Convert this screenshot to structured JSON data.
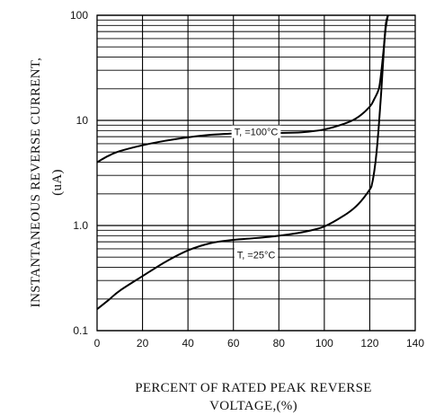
{
  "chart_data": {
    "type": "line",
    "title": "",
    "ylabel": "INSTANTANEOUS REVERSE CURRENT,",
    "ylabel_unit": "(uA)",
    "xlabel_line1": "PERCENT OF RATED PEAK REVERSE",
    "xlabel_line2": "VOLTAGE,(%)",
    "xlim": [
      0,
      140
    ],
    "ylim": [
      0.1,
      100
    ],
    "yscale": "log",
    "grid": true,
    "x_ticks": [
      0,
      20,
      40,
      60,
      80,
      100,
      120,
      140
    ],
    "x_tick_labels": [
      "0",
      "20",
      "40",
      "60",
      "80",
      "100",
      "120",
      "140"
    ],
    "y_ticks": [
      0.1,
      1.0,
      10,
      100
    ],
    "y_tick_labels": [
      "0.1",
      "1.0",
      "10",
      "100"
    ],
    "series": [
      {
        "annotation": "T, =100°C",
        "annotation_at": [
          70,
          7.8
        ],
        "x": [
          0,
          5,
          10,
          20,
          30,
          40,
          50,
          60,
          70,
          80,
          90,
          100,
          110,
          115,
          120,
          122,
          124,
          125,
          126,
          127,
          128
        ],
        "y": [
          4.0,
          4.6,
          5.1,
          5.8,
          6.4,
          6.9,
          7.3,
          7.5,
          7.6,
          7.6,
          7.7,
          8.2,
          9.5,
          10.8,
          13.5,
          16,
          20,
          28,
          45,
          75,
          100
        ]
      },
      {
        "annotation": "T, =25°C",
        "annotation_at": [
          70,
          0.53
        ],
        "x": [
          0,
          5,
          10,
          20,
          30,
          40,
          50,
          60,
          70,
          80,
          90,
          100,
          110,
          115,
          120,
          121,
          122,
          123,
          124,
          125,
          126,
          127,
          128
        ],
        "y": [
          0.16,
          0.195,
          0.24,
          0.33,
          0.45,
          0.58,
          0.68,
          0.73,
          0.76,
          0.8,
          0.86,
          0.98,
          1.3,
          1.6,
          2.2,
          2.5,
          3.3,
          5,
          9,
          18,
          40,
          80,
          100
        ]
      }
    ],
    "colors": {
      "line": "#000000",
      "grid": "#000000",
      "background": "#ffffff"
    }
  }
}
